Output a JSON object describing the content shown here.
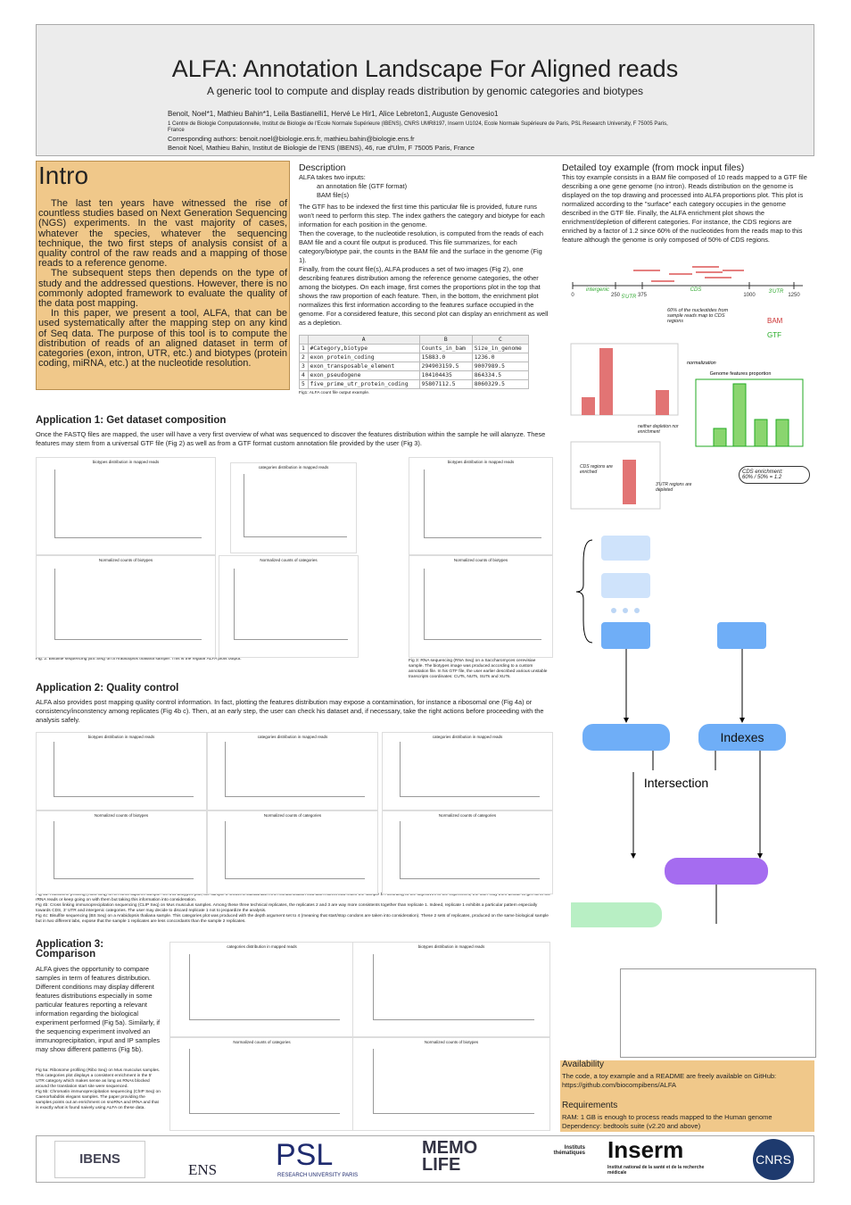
{
  "header": {
    "title": "ALFA: Annotation Landscape For Aligned reads",
    "subtitle": "A generic tool to compute and display reads distribution by genomic categories and biotypes",
    "authors": "Benoit, Noel*1, Mathieu Bahin*1, Leila Bastianelli1, Hervé Le Hir1, Alice Lebreton1, Auguste Genovesio1",
    "affiliation": "1 Centre de Biologie Computationnelle, Institut de Biologie de l'Ecole Normale Supérieure (IBENS), CNRS UMR8197, Inserm U1024, Ecole Normale Supérieure de Paris, PSL Research University, F 75005 Paris, France",
    "corresponding": "Corresponding authors: benoit.noel@biologie.ens.fr, mathieu.bahin@biologie.ens.fr",
    "address": "Benoit Noel, Mathieu Bahin, Institut de Biologie de l'ENS (IBENS), 46, rue d'Ulm, F 75005 Paris, France"
  },
  "intro": {
    "heading": "Intro",
    "paragraphs": [
      "The last ten years have witnessed the rise of countless studies based on Next Generation Sequencing (NGS) experiments. In the vast majority of cases, whatever the species, whatever the sequencing technique, the two first steps of analysis consist of a quality control of the raw reads and a mapping of those reads to a reference genome.",
      "The subsequent steps then depends on the type of study and the addressed questions. However, there is no commonly adopted framework to evaluate the quality of the data post mapping.",
      "In this paper, we present a tool, ALFA, that can be used systematically after the mapping step on any kind of Seq data. The purpose of this tool is to compute the distribution of reads of an aligned dataset in term of categories (exon, intron, UTR, etc.) and biotypes (protein coding, miRNA, etc.) at the nucleotide resolution."
    ]
  },
  "description": {
    "heading": "Description",
    "inputs": "ALFA takes two inputs:",
    "input_items": [
      "an annotation file (GTF format)",
      "BAM file(s)"
    ],
    "paragraphs": [
      "The GTF has to be indexed the first time this particular file is provided, future runs won't need to perform this step. The index gathers the category and biotype for each information for each position in the genome.",
      "Then the coverage, to the nucleotide resolution, is computed from the reads of each BAM file and a count file output is produced. This file summarizes, for each category/biotype pair, the counts in the BAM file and the surface in the genome (Fig 1).",
      "Finally, from the count file(s), ALFA produces a set of two images (Fig 2), one describing features distribution among the reference genome categories, the other among the biotypes. On each image, first comes the proportions plot in the top that shows the raw proportion of each feature. Then, in the bottom, the enrichment plot normalizes this first information according to the features surface occupied in the genome. For a considered feature, this second plot can display an enrichment as well as a depletion."
    ],
    "table": {
      "columns": [
        "A",
        "B",
        "C"
      ],
      "rows": [
        [
          "1",
          "#Category,biotype",
          "Counts_in_bam",
          "Size_in_genome"
        ],
        [
          "2",
          "exon_protein_coding",
          "15883.0",
          "1236.0"
        ],
        [
          "3",
          "exon_transposable_element",
          "294903159.5",
          "9007989.5"
        ],
        [
          "4",
          "exon_pseudogene",
          "104104435",
          "864334.5"
        ],
        [
          "5",
          "five_prime_utr_protein_coding",
          "95807112.5",
          "8060329.5"
        ]
      ]
    },
    "caption": "Fig1: ALFA count file output example."
  },
  "toy": {
    "heading": "Detailed toy example (from mock input files)",
    "text": "This toy example consists in a BAM file composed of 10 reads mapped to a GTF file describing a one gene genome (no intron). Reads distribution on the genome is displayed on the top drawing and processed into ALFA proportions plot. This plot is normalized according to the \"surface\" each category occupies in the genome described in the GTF file. Finally, the ALFA enrichment plot shows the enrichment/depletion of different categories. For instance, the CDS regions are enriched by a factor of 1.2 since 60% of the nucleotides from the reads map to this feature although the genome is only composed of 50% of CDS regions.",
    "axis": [
      "0",
      "250",
      "375",
      "1000",
      "1250"
    ],
    "regions": [
      "intergenic",
      "5'UTR",
      "CDS",
      "3'UTR"
    ],
    "notes": [
      "60% of the nucleotides from sample reads map to CDS regions",
      "BAM",
      "GTF",
      "normalization",
      "Genome features proportion",
      "neither depletion nor enrichment",
      "CDS regions are enriched",
      "3'UTR regions are depleted",
      "CDS enrichment:",
      "60% / 50% = 1.2"
    ]
  },
  "flow": {
    "indexes": "Indexes",
    "intersection": "Intersection"
  },
  "app1": {
    "heading": "Application 1: Get dataset composition",
    "text": "Once the FASTQ files are mapped, the user will have a very first overview of what was sequenced to discover the features distribution within the sample he will alanyze. These features may stem from a universal GTF file (Fig 2) as well as from a GTF format custom annotation file provided by the user (Fig 3).",
    "panels": [
      "biotypes distribution in mapped reads",
      "categories distribution in mapped reads",
      "biotypes distribution in mapped reads",
      "Normalized counts of biotypes",
      "Normalized counts of categories",
      "Normalized counts of biotypes"
    ],
    "captions": [
      "Fig. 2: Bisulfite sequencing (BS Seq) on a Arabidopsis thaliana sample. This is the regular ALFA plots output.",
      "Fig 3: RNA sequencing (RNA Seq) on a Saccharomyces cerevisiae sample. The biotypes image was produced according to a custom annotation file. In his GTF file, the user earlier described various unstable transcripts coordinates: CUTs, NUTs, SUTs and XUTs."
    ]
  },
  "app2": {
    "heading": "Application 2: Quality control",
    "text": "ALFA also provides post mapping quality control information. In fact, plotting the features distribution may expose a contamination, for instance a ribosomal one (Fig 4a) or consistency/inconstency among replicates (Fig 4b c). Then, at an early step, the user can check his dataset and, if necessary, take the right actions before proceeding with the analysis safely.",
    "panels": [
      "biotypes distribution in mapped reads",
      "categories distribution in mapped reads",
      "categories distribution in mapped reads",
      "Normalized counts of biotypes",
      "Normalized counts of categories",
      "Normalized counts of categories"
    ],
    "captions": [
      "Fig 4a: Ribosome profiling (Ribo Seq) on a Homo sapiens sample. On this biotypes plot, the sample 2 shows a substantial rRNA contamination that didn't affect that much the sample 1. According to the objectives of the experiment, the user may then decide to get rid of the rRNA reads or keep going on with them but taking this information into consideration.",
      "Fig 4b: Cross linking immunoprecipitation sequencing (CLIP Seq) on Mus musculus samples. Among these three technical replicates, the replicates 2 and 3 are way more consistents together than replicate 1. Indeed, replicate 1 exhibits a particular pattern especially towards CDS, 3' UTR and intergenic categories. The user may decide to discard replicate 1 not to jeopardize the analysis.",
      "Fig 4c: Bisulfite sequencing (BS Seq) on a Arabidopsis thaliana sample. This categories plot was produced with the depth argument set to 4 (meaning that start/stop condons are taken into consideration). These 2 sets of replicates, produced on the same biological sample but in two different labs, expose that the sample 1 replicates are less concordants than the sample 2 replicates."
    ]
  },
  "app3": {
    "heading": "Application 3: Comparison",
    "text": "ALFA gives the opportunity to compare samples in term of features distribution. Different conditions may display different features distributions especially in some particular features reporting a relevant information regarding the biological experiment performed (Fig 5a). Similarly, if the sequencing experiment involved an immunoprecipitation, input and IP samples may show different patterns (Fig 5b).",
    "panels": [
      "categories distribution in mapped reads",
      "biotypes distribution in mapped reads",
      "Normalized counts of categories",
      "Normalized counts of biotypes"
    ],
    "captions": [
      "Fig 5a: Ribosome profiling (Ribo Seq) on Mus musculus samples. This categories plot displays a consistent enrichment in the 5' UTR category which makes sense as long as RNAs blocked around the translation start site were sequenced.",
      "Fig 5b: Chromatin immunoprecipitation sequencing (ChIP Seq) on Caenorhabditis elegans samples. The paper providing the samples points out an enrichment on snoRNA and tRNA and that is exactly what is found naively using ALFA on these data."
    ]
  },
  "availability": {
    "heading": "Availability",
    "text": "The code, a toy example and a README are freely available on GitHub: https://github.com/biocompibens/ALFA",
    "req_heading": "Requirements",
    "req": [
      "RAM: 1 GB is enough to process reads mapped to the Human genome",
      "Dependency: bedtools suite (v2.20 and above)"
    ]
  },
  "logos": [
    "IBENS",
    "ENS",
    "PSL",
    "RESEARCH UNIVERSITY PARIS",
    "MEMO LIFE",
    "Instituts thématiques",
    "Inserm",
    "Institut national de la santé et de la recherche médicale",
    "CNRS"
  ]
}
